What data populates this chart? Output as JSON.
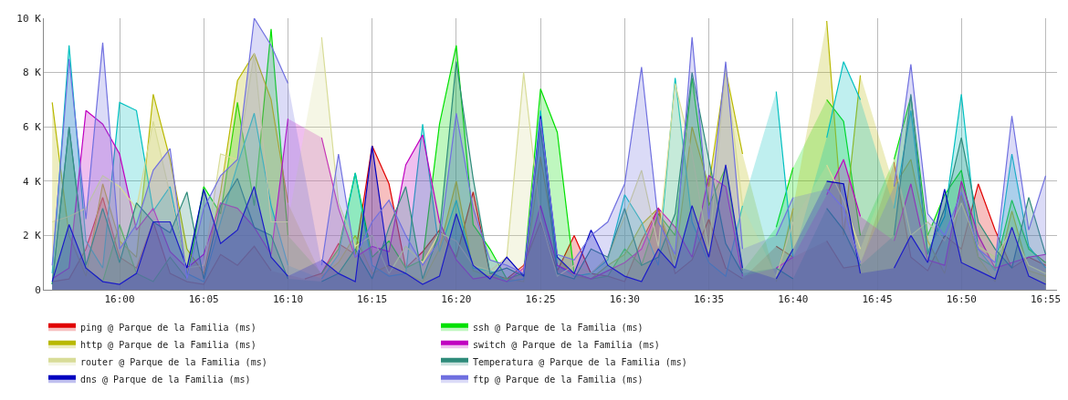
{
  "chart_data": {
    "type": "area",
    "x": [
      15.9333,
      15.95,
      15.9667,
      15.9833,
      16,
      16.0167,
      16.0333,
      16.05,
      16.0667,
      16.0833,
      16.1,
      16.1167,
      16.1333,
      16.15,
      16.1667,
      16.1833,
      16.2,
      16.2167,
      16.2333,
      16.25,
      16.2667,
      16.2833,
      16.3,
      16.3167,
      16.3333,
      16.35,
      16.3667,
      16.3833,
      16.4,
      16.4167,
      16.4333,
      16.45,
      16.4667,
      16.4833,
      16.5,
      16.5167,
      16.5333,
      16.55,
      16.5667,
      16.5833,
      16.6,
      16.6167,
      16.6333,
      16.65,
      16.6667,
      16.6833,
      16.7,
      16.7167,
      16.7333,
      16.75,
      16.7667,
      16.7833,
      16.8,
      16.8167,
      16.8333,
      16.85,
      16.8667,
      16.8833,
      16.9,
      16.9167
    ],
    "xlim": [
      15.925,
      16.928
    ],
    "xticks": [
      {
        "value": 16,
        "label": "16:00"
      },
      {
        "value": 16.0833,
        "label": "16:05"
      },
      {
        "value": 16.1667,
        "label": "16:10"
      },
      {
        "value": 16.25,
        "label": "16:15"
      },
      {
        "value": 16.3333,
        "label": "16:20"
      },
      {
        "value": 16.4167,
        "label": "16:25"
      },
      {
        "value": 16.5,
        "label": "16:30"
      },
      {
        "value": 16.5833,
        "label": "16:35"
      },
      {
        "value": 16.6667,
        "label": "16:40"
      },
      {
        "value": 16.75,
        "label": "16:45"
      },
      {
        "value": 16.8333,
        "label": "16:50"
      },
      {
        "value": 16.9167,
        "label": "16:55"
      }
    ],
    "ylim": [
      0,
      10000
    ],
    "yticks": [
      0,
      {
        "value": 2000,
        "label": "2 K"
      },
      {
        "value": 4000,
        "label": "4 K"
      },
      {
        "value": 6000,
        "label": "6 K"
      },
      {
        "value": 8000,
        "label": "8 K"
      },
      {
        "value": 10000,
        "label": "10 K"
      }
    ],
    "grid": true,
    "legend": "bottom",
    "marker": "none",
    "line_style": "solid",
    "series": [
      {
        "name": "ping @ Parque de la Familia (ms)",
        "color": "#e00000",
        "values": [
          300,
          400,
          1500,
          3400,
          1200,
          800,
          2500,
          600,
          300,
          200,
          1300,
          900,
          1600,
          700,
          null,
          400,
          600,
          1700,
          1300,
          5300,
          3900,
          800,
          1400,
          2200,
          1200,
          3600,
          600,
          400,
          900,
          2500,
          700,
          2000,
          600,
          500,
          300,
          1800,
          3000,
          600,
          1100,
          2600,
          800,
          400,
          null,
          1600,
          1200,
          null,
          1800,
          800,
          900,
          null,
          4700,
          1200,
          700,
          2000,
          1500,
          3900,
          2200,
          800,
          1200,
          900
        ]
      },
      {
        "name": "ssh @ Parque de la Familia (ms)",
        "color": "#00e000",
        "values": [
          200,
          6000,
          800,
          300,
          2400,
          600,
          300,
          1200,
          400,
          3800,
          2800,
          6900,
          3100,
          9600,
          2000,
          null,
          600,
          1500,
          4300,
          1200,
          1800,
          800,
          1100,
          6100,
          9000,
          2400,
          1500,
          400,
          600,
          7400,
          5800,
          600,
          400,
          500,
          1500,
          900,
          2800,
          2000,
          7800,
          3100,
          4500,
          700,
          null,
          2300,
          4500,
          null,
          7000,
          6200,
          2000,
          null,
          4800,
          7100,
          2000,
          3500,
          4400,
          1200,
          800,
          3300,
          1500,
          1000
        ]
      },
      {
        "name": "http @ Parque de la Familia (ms)",
        "color": "#b8b800",
        "values": [
          6900,
          2000,
          500,
          3900,
          1800,
          1200,
          7200,
          4800,
          1500,
          600,
          3600,
          7700,
          8700,
          7000,
          3200,
          null,
          500,
          1000,
          2000,
          600,
          900,
          600,
          300,
          1500,
          4000,
          700,
          500,
          400,
          300,
          4900,
          1200,
          500,
          400,
          900,
          1300,
          2400,
          3000,
          1100,
          6000,
          3800,
          8100,
          5000,
          null,
          300,
          3000,
          null,
          9900,
          2000,
          7900,
          null,
          3800,
          4800,
          1800,
          600,
          3500,
          1200,
          300,
          2900,
          700,
          500
        ]
      },
      {
        "color": "#00c0c0",
        "values": [
          600,
          9000,
          1800,
          800,
          6900,
          6600,
          2900,
          3800,
          600,
          300,
          2500,
          4600,
          6500,
          3100,
          900,
          null,
          400,
          1300,
          4300,
          900,
          500,
          600,
          6100,
          1400,
          3300,
          800,
          700,
          300,
          400,
          6600,
          900,
          500,
          600,
          1100,
          3500,
          2500,
          900,
          7800,
          2500,
          1000,
          500,
          3100,
          null,
          7300,
          1200,
          null,
          5600,
          8400,
          7000,
          null,
          3000,
          6600,
          1400,
          2700,
          7200,
          1500,
          700,
          5000,
          1600,
          800
        ]
      },
      {
        "name": "switch @ Parque de la Familia (ms)",
        "color": "#c000c0",
        "values": [
          400,
          800,
          6600,
          6100,
          5000,
          2200,
          3000,
          1400,
          800,
          1300,
          3200,
          3000,
          2300,
          1300,
          6300,
          null,
          5600,
          3000,
          1200,
          1600,
          1400,
          4600,
          5700,
          2500,
          1100,
          400,
          500,
          300,
          800,
          3100,
          900,
          600,
          400,
          700,
          1000,
          1500,
          3000,
          2300,
          1200,
          4200,
          3800,
          500,
          null,
          800,
          1200,
          null,
          3500,
          4800,
          2700,
          null,
          1800,
          3900,
          1100,
          900,
          4000,
          2000,
          800,
          1000,
          1200,
          1300
        ]
      },
      {
        "name": "router @ Parque de la Familia (ms)",
        "color": "#d8dc98",
        "values": [
          2500,
          2700,
          3000,
          4200,
          3800,
          3000,
          6200,
          3500,
          800,
          900,
          5000,
          4800,
          8700,
          2500,
          2500,
          null,
          9300,
          3200,
          1600,
          2000,
          600,
          1600,
          1000,
          2100,
          1800,
          900,
          700,
          1200,
          8000,
          2600,
          500,
          900,
          600,
          1200,
          2700,
          4400,
          1600,
          7600,
          5000,
          1400,
          8200,
          3100,
          null,
          500,
          2500,
          null,
          4600,
          3300,
          1500,
          null,
          4800,
          2000,
          2500,
          1800,
          3200,
          1600,
          1200,
          2200,
          900,
          600
        ]
      },
      {
        "name": "Temperatura @ Parque de la Familia (ms)",
        "color": "#2e8b7a",
        "values": [
          200,
          6000,
          900,
          3000,
          1000,
          3200,
          2500,
          2100,
          3600,
          400,
          3100,
          4100,
          2300,
          2000,
          400,
          null,
          300,
          600,
          1500,
          400,
          2300,
          3800,
          400,
          2100,
          8400,
          4100,
          600,
          800,
          500,
          6000,
          600,
          400,
          1500,
          1200,
          3000,
          900,
          1200,
          2800,
          8000,
          4800,
          1700,
          600,
          null,
          800,
          400,
          null,
          3000,
          2200,
          900,
          null,
          2000,
          7200,
          1300,
          3000,
          5600,
          2500,
          1500,
          800,
          3400,
          1300
        ]
      },
      {
        "name": "dns @ Parque de la Familia (ms)",
        "color": "#0000c0",
        "values": [
          300,
          2400,
          800,
          300,
          200,
          600,
          2500,
          2500,
          800,
          3700,
          1700,
          2200,
          3800,
          1200,
          500,
          null,
          1100,
          600,
          300,
          5300,
          900,
          600,
          200,
          500,
          2800,
          900,
          400,
          1200,
          500,
          6400,
          1200,
          600,
          2200,
          900,
          500,
          300,
          1500,
          800,
          3100,
          1200,
          4600,
          800,
          null,
          400,
          1500,
          null,
          4000,
          3900,
          600,
          null,
          800,
          2000,
          1000,
          3700,
          1000,
          700,
          400,
          2300,
          500,
          200
        ]
      },
      {
        "name": "ftp @ Parque de la Familia (ms)",
        "color": "#7070e0",
        "values": [
          900,
          8500,
          2600,
          9100,
          1500,
          2400,
          4400,
          5200,
          400,
          3000,
          4200,
          4800,
          10000,
          9000,
          7600,
          null,
          900,
          5000,
          1200,
          2500,
          3300,
          2000,
          900,
          1800,
          6500,
          3000,
          1100,
          900,
          600,
          6300,
          1300,
          1100,
          2000,
          2500,
          3900,
          8200,
          2500,
          1300,
          9300,
          2600,
          8400,
          1500,
          null,
          2000,
          3400,
          null,
          3700,
          3000,
          1000,
          null,
          3800,
          8300,
          2800,
          2000,
          3600,
          1500,
          1000,
          6400,
          2200,
          4200
        ]
      }
    ]
  }
}
